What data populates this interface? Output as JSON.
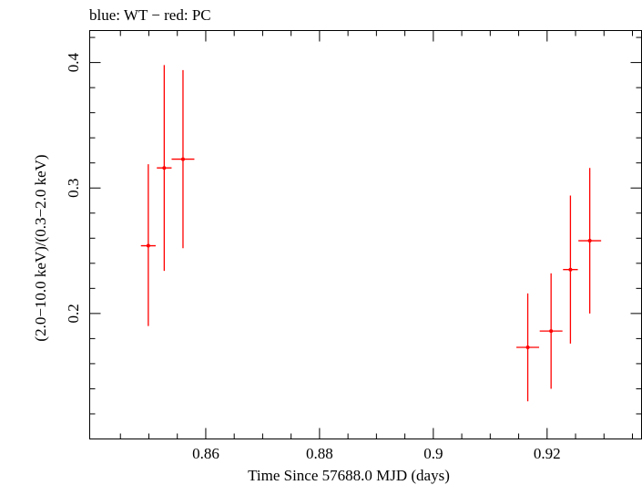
{
  "chart_data": {
    "type": "scatter",
    "title": "blue: WT − red: PC",
    "xlabel": "Time Since 57688.0 MJD (days)",
    "ylabel": "(2.0−10.0 keV)/(0.3−2.0 keV)",
    "xlim": [
      0.8396,
      0.9366
    ],
    "ylim": [
      0.1,
      0.4255
    ],
    "x_ticks": [
      0.86,
      0.88,
      0.9,
      0.92
    ],
    "x_tick_labels": [
      "0.86",
      "0.88",
      "0.9",
      "0.92"
    ],
    "y_ticks": [
      0.2,
      0.3,
      0.4
    ],
    "y_tick_labels": [
      "0.2",
      "0.3",
      "0.4"
    ],
    "grid": false,
    "series": [
      {
        "color": "#ff0000",
        "points": [
          {
            "x": 0.8499,
            "xerr": 0.0013,
            "y": 0.254,
            "ylo": 0.19,
            "yhi": 0.319
          },
          {
            "x": 0.8527,
            "xerr": 0.0013,
            "y": 0.316,
            "ylo": 0.234,
            "yhi": 0.398
          },
          {
            "x": 0.856,
            "xerr": 0.002,
            "y": 0.323,
            "ylo": 0.252,
            "yhi": 0.394
          },
          {
            "x": 0.9166,
            "xerr": 0.002,
            "y": 0.173,
            "ylo": 0.13,
            "yhi": 0.216
          },
          {
            "x": 0.9207,
            "xerr": 0.002,
            "y": 0.186,
            "ylo": 0.14,
            "yhi": 0.232
          },
          {
            "x": 0.9241,
            "xerr": 0.0013,
            "y": 0.235,
            "ylo": 0.176,
            "yhi": 0.294
          },
          {
            "x": 0.9275,
            "xerr": 0.002,
            "y": 0.258,
            "ylo": 0.2,
            "yhi": 0.316
          }
        ]
      }
    ]
  }
}
